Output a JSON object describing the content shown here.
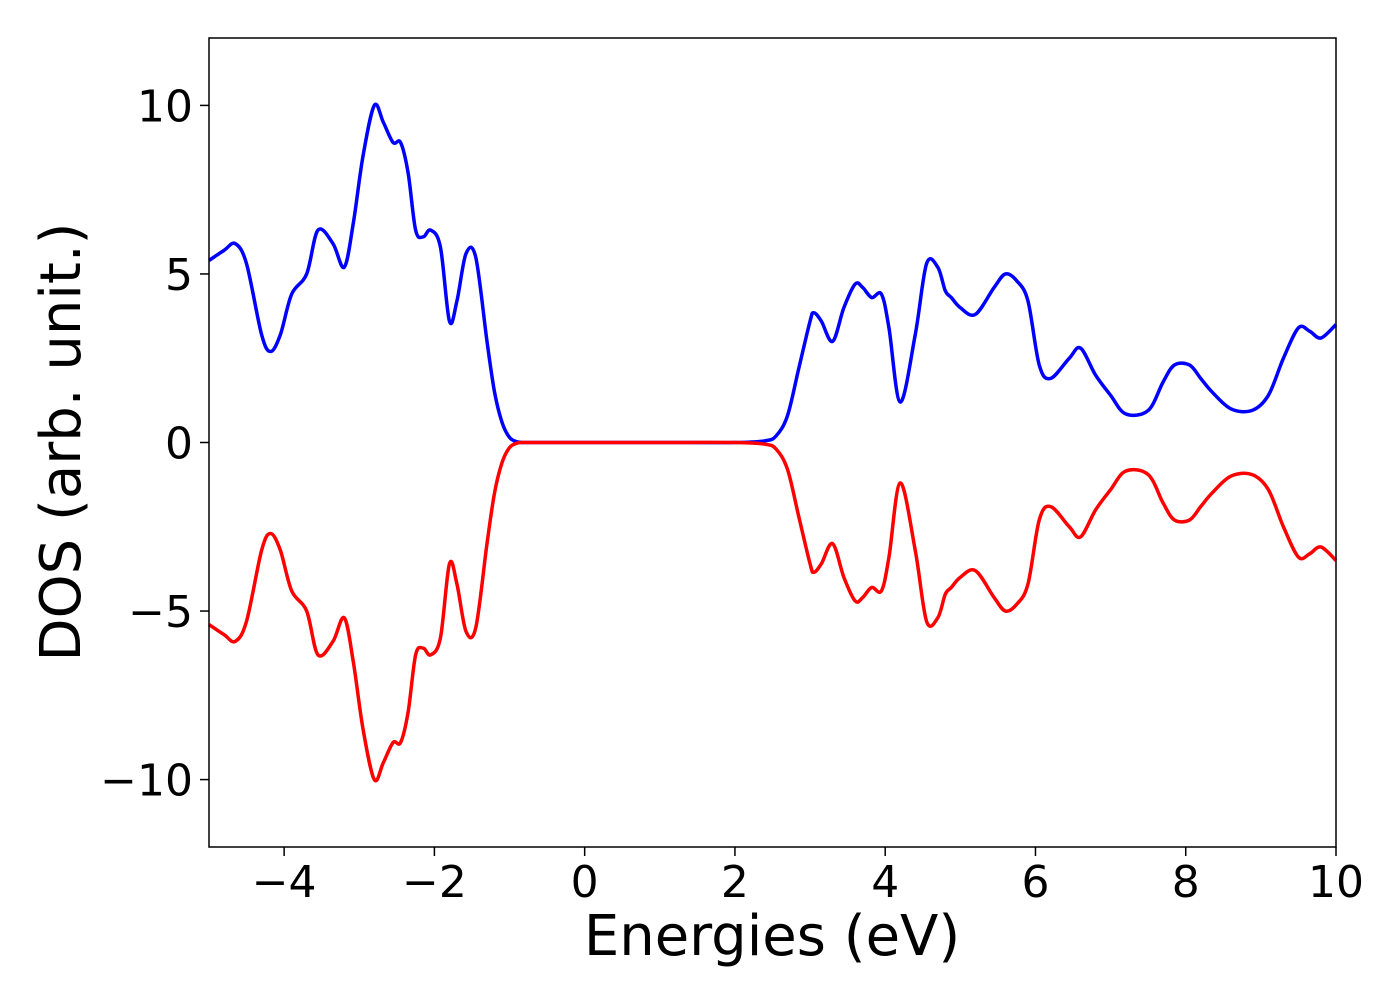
{
  "chart_data": {
    "type": "line",
    "title": "",
    "xlabel": "Energies (eV)",
    "ylabel": "DOS (arb. unit.)",
    "xlim": [
      -5,
      10
    ],
    "ylim": [
      -12,
      12
    ],
    "xticks": [
      -4,
      -2,
      0,
      2,
      4,
      6,
      8,
      10
    ],
    "xtick_labels": [
      "−4",
      "−2",
      "0",
      "2",
      "4",
      "6",
      "8",
      "10"
    ],
    "yticks": [
      -10,
      -5,
      0,
      5,
      10
    ],
    "ytick_labels": [
      "−10",
      "−5",
      "0",
      "5",
      "10"
    ],
    "grid": false,
    "legend": "none",
    "series": [
      {
        "color": "#0000ff",
        "x": [
          -5.0,
          -4.8,
          -4.65,
          -4.5,
          -4.3,
          -4.18,
          -4.05,
          -3.9,
          -3.7,
          -3.55,
          -3.35,
          -3.2,
          -3.08,
          -2.95,
          -2.8,
          -2.68,
          -2.55,
          -2.45,
          -2.35,
          -2.25,
          -2.15,
          -2.05,
          -1.92,
          -1.8,
          -1.7,
          -1.58,
          -1.45,
          -1.3,
          -1.2,
          -1.1,
          -1.0,
          -0.9,
          -0.8,
          -0.7,
          -0.6,
          -0.5,
          0.0,
          1.0,
          2.0,
          2.4,
          2.55,
          2.7,
          2.85,
          3.0,
          3.05,
          3.15,
          3.3,
          3.45,
          3.6,
          3.7,
          3.82,
          3.95,
          4.05,
          4.2,
          4.4,
          4.55,
          4.7,
          4.8,
          4.88,
          5.0,
          5.2,
          5.45,
          5.6,
          5.75,
          5.9,
          6.05,
          6.2,
          6.45,
          6.6,
          6.8,
          7.0,
          7.2,
          7.5,
          7.7,
          7.85,
          8.05,
          8.2,
          8.35,
          8.6,
          8.88,
          9.1,
          9.3,
          9.5,
          9.65,
          9.8,
          10.0
        ],
        "y": [
          5.4,
          5.7,
          5.9,
          5.3,
          3.2,
          2.7,
          3.2,
          4.4,
          5.0,
          6.3,
          5.9,
          5.2,
          6.5,
          8.5,
          10.0,
          9.5,
          8.9,
          8.9,
          8.0,
          6.3,
          6.1,
          6.3,
          5.8,
          3.6,
          4.2,
          5.6,
          5.5,
          3.0,
          1.5,
          0.6,
          0.15,
          0.02,
          0.0,
          0.0,
          0.0,
          0.0,
          0.0,
          0.0,
          0.0,
          0.05,
          0.2,
          0.8,
          2.2,
          3.6,
          3.85,
          3.6,
          3.0,
          4.0,
          4.7,
          4.6,
          4.3,
          4.4,
          3.4,
          1.2,
          3.2,
          5.3,
          5.2,
          4.5,
          4.3,
          4.0,
          3.8,
          4.6,
          5.0,
          4.8,
          4.2,
          2.3,
          1.9,
          2.5,
          2.8,
          2.0,
          1.4,
          0.85,
          0.95,
          1.8,
          2.3,
          2.3,
          1.9,
          1.5,
          1.0,
          0.95,
          1.4,
          2.5,
          3.4,
          3.3,
          3.1,
          3.5
        ]
      },
      {
        "color": "#ff0000",
        "x": [
          -5.0,
          -4.8,
          -4.65,
          -4.5,
          -4.3,
          -4.18,
          -4.05,
          -3.9,
          -3.7,
          -3.55,
          -3.35,
          -3.2,
          -3.08,
          -2.95,
          -2.8,
          -2.68,
          -2.55,
          -2.45,
          -2.35,
          -2.25,
          -2.15,
          -2.05,
          -1.92,
          -1.8,
          -1.7,
          -1.58,
          -1.45,
          -1.3,
          -1.2,
          -1.1,
          -1.0,
          -0.9,
          -0.8,
          -0.7,
          -0.6,
          -0.5,
          0.0,
          1.0,
          2.0,
          2.4,
          2.55,
          2.7,
          2.85,
          3.0,
          3.05,
          3.15,
          3.3,
          3.45,
          3.6,
          3.7,
          3.82,
          3.95,
          4.05,
          4.2,
          4.4,
          4.55,
          4.7,
          4.8,
          4.88,
          5.0,
          5.2,
          5.45,
          5.6,
          5.75,
          5.9,
          6.05,
          6.2,
          6.45,
          6.6,
          6.8,
          7.0,
          7.2,
          7.5,
          7.7,
          7.85,
          8.05,
          8.2,
          8.35,
          8.6,
          8.88,
          9.1,
          9.3,
          9.5,
          9.65,
          9.8,
          10.0
        ],
        "y": [
          -5.4,
          -5.7,
          -5.9,
          -5.3,
          -3.2,
          -2.7,
          -3.2,
          -4.4,
          -5.0,
          -6.3,
          -5.9,
          -5.2,
          -6.5,
          -8.5,
          -10.0,
          -9.5,
          -8.9,
          -8.9,
          -8.0,
          -6.3,
          -6.1,
          -6.3,
          -5.8,
          -3.6,
          -4.2,
          -5.6,
          -5.5,
          -3.0,
          -1.5,
          -0.6,
          -0.15,
          -0.02,
          0.0,
          0.0,
          0.0,
          0.0,
          0.0,
          0.0,
          0.0,
          -0.05,
          -0.2,
          -0.8,
          -2.2,
          -3.6,
          -3.85,
          -3.6,
          -3.0,
          -4.0,
          -4.7,
          -4.6,
          -4.3,
          -4.4,
          -3.4,
          -1.2,
          -3.2,
          -5.3,
          -5.2,
          -4.5,
          -4.3,
          -4.0,
          -3.8,
          -4.6,
          -5.0,
          -4.8,
          -4.2,
          -2.3,
          -1.9,
          -2.5,
          -2.8,
          -2.0,
          -1.4,
          -0.85,
          -0.95,
          -1.8,
          -2.3,
          -2.3,
          -1.9,
          -1.5,
          -1.0,
          -0.95,
          -1.4,
          -2.5,
          -3.4,
          -3.3,
          -3.1,
          -3.5
        ]
      }
    ]
  }
}
